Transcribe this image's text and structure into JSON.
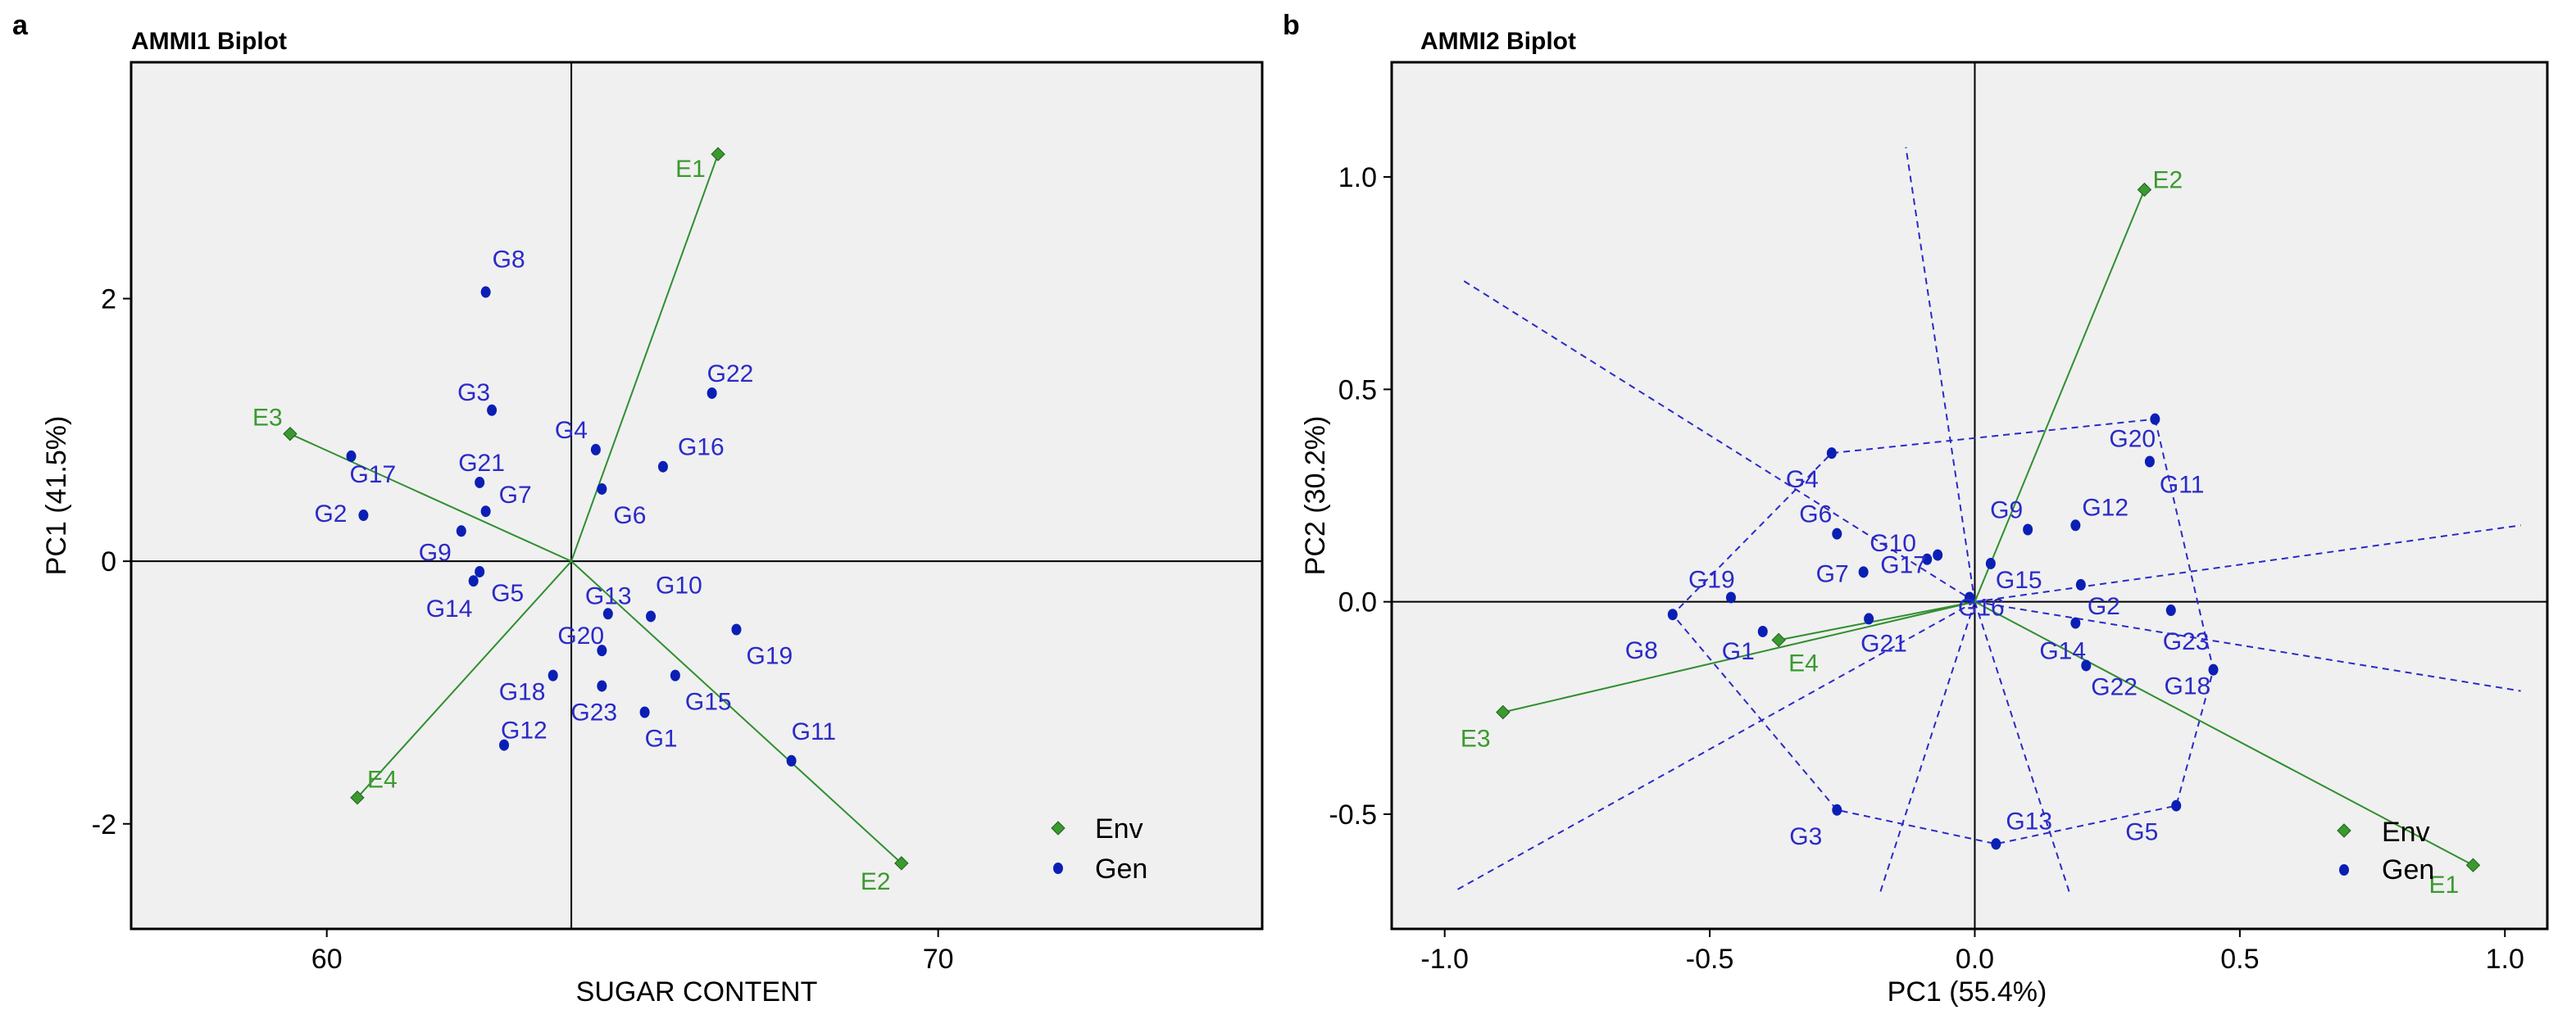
{
  "colors": {
    "env": "#3a9a2e",
    "env_line": "#2f8f2f",
    "gen": "#0b1fb5",
    "gen_label": "#2a2ac8",
    "hull": "#2a2ac8",
    "axis": "#000000",
    "background": "#f0f0f0"
  },
  "chart_data": [
    {
      "type": "scatter",
      "panel_label": "a",
      "title": "AMMI1 Biplot",
      "xlabel": "SUGAR CONTENT",
      "ylabel": "PC1 (41.5%)",
      "xlim": [
        56.8,
        75.3
      ],
      "ylim": [
        -2.8,
        3.8
      ],
      "xticks": [
        60,
        70
      ],
      "yticks": [
        -2,
        0,
        2
      ],
      "ref_x": 64.0,
      "ref_y": 0,
      "legend": {
        "position": "bottom-right",
        "entries": [
          "Env",
          "Gen"
        ]
      },
      "environments": [
        {
          "name": "E1",
          "x": 66.4,
          "y": 3.1
        },
        {
          "name": "E2",
          "x": 69.4,
          "y": -2.3
        },
        {
          "name": "E3",
          "x": 59.4,
          "y": 0.97
        },
        {
          "name": "E4",
          "x": 60.5,
          "y": -1.8
        }
      ],
      "genotypes": [
        {
          "name": "G1",
          "x": 65.2,
          "y": -1.15
        },
        {
          "name": "G2",
          "x": 60.6,
          "y": 0.35
        },
        {
          "name": "G3",
          "x": 62.7,
          "y": 1.15
        },
        {
          "name": "G4",
          "x": 64.4,
          "y": 0.85
        },
        {
          "name": "G5",
          "x": 62.5,
          "y": -0.08
        },
        {
          "name": "G6",
          "x": 64.5,
          "y": 0.55
        },
        {
          "name": "G7",
          "x": 62.6,
          "y": 0.38
        },
        {
          "name": "G8",
          "x": 62.6,
          "y": 2.05
        },
        {
          "name": "G9",
          "x": 62.2,
          "y": 0.23
        },
        {
          "name": "G10",
          "x": 65.3,
          "y": -0.42
        },
        {
          "name": "G11",
          "x": 67.6,
          "y": -1.52
        },
        {
          "name": "G12",
          "x": 62.9,
          "y": -1.4
        },
        {
          "name": "G13",
          "x": 64.6,
          "y": -0.4
        },
        {
          "name": "G14",
          "x": 62.4,
          "y": -0.15
        },
        {
          "name": "G15",
          "x": 65.7,
          "y": -0.87
        },
        {
          "name": "G16",
          "x": 65.5,
          "y": 0.72
        },
        {
          "name": "G17",
          "x": 60.4,
          "y": 0.8
        },
        {
          "name": "G18",
          "x": 63.7,
          "y": -0.87
        },
        {
          "name": "G19",
          "x": 66.7,
          "y": -0.52
        },
        {
          "name": "G20",
          "x": 64.5,
          "y": -0.68
        },
        {
          "name": "G21",
          "x": 62.5,
          "y": 0.6
        },
        {
          "name": "G22",
          "x": 66.3,
          "y": 1.28
        },
        {
          "name": "G23",
          "x": 64.5,
          "y": -0.95
        }
      ]
    },
    {
      "type": "scatter",
      "panel_label": "b",
      "title": "AMMI2 Biplot",
      "xlabel": "PC1 (55.4%)",
      "ylabel": "PC2 (30.2%)",
      "xlim": [
        -1.1,
        1.08
      ],
      "ylim": [
        -0.77,
        1.27
      ],
      "xticks": [
        -1.0,
        -0.5,
        0.0,
        0.5,
        1.0
      ],
      "ytick_labels": [
        "1.0",
        "0.5",
        "0.0",
        "-0.5"
      ],
      "yticks": [
        1.0,
        0.5,
        0.0,
        -0.5
      ],
      "xtick_labels": [
        "-1.0",
        "-0.5",
        "0.0",
        "0.5",
        "1.0"
      ],
      "ref_x": 0,
      "ref_y": 0,
      "legend": {
        "position": "bottom-right",
        "entries": [
          "Env",
          "Gen"
        ]
      },
      "environments": [
        {
          "name": "E1",
          "x": 0.94,
          "y": -0.62
        },
        {
          "name": "E2",
          "x": 0.32,
          "y": 0.97
        },
        {
          "name": "E3",
          "x": -0.89,
          "y": -0.26
        },
        {
          "name": "E4",
          "x": -0.37,
          "y": -0.09
        }
      ],
      "genotypes": [
        {
          "name": "G1",
          "x": -0.4,
          "y": -0.07
        },
        {
          "name": "G2",
          "x": 0.2,
          "y": 0.04
        },
        {
          "name": "G3",
          "x": -0.26,
          "y": -0.49
        },
        {
          "name": "G4",
          "x": -0.27,
          "y": 0.35
        },
        {
          "name": "G5",
          "x": 0.38,
          "y": -0.48
        },
        {
          "name": "G6",
          "x": -0.26,
          "y": 0.16
        },
        {
          "name": "G7",
          "x": -0.21,
          "y": 0.07
        },
        {
          "name": "G8",
          "x": -0.57,
          "y": -0.03
        },
        {
          "name": "G9",
          "x": 0.1,
          "y": 0.17
        },
        {
          "name": "G10",
          "x": -0.09,
          "y": 0.1
        },
        {
          "name": "G11",
          "x": 0.33,
          "y": 0.33
        },
        {
          "name": "G12",
          "x": 0.19,
          "y": 0.18
        },
        {
          "name": "G13",
          "x": 0.04,
          "y": -0.57
        },
        {
          "name": "G14",
          "x": 0.19,
          "y": -0.05
        },
        {
          "name": "G15",
          "x": 0.03,
          "y": 0.09
        },
        {
          "name": "G16",
          "x": -0.01,
          "y": 0.01
        },
        {
          "name": "G17",
          "x": -0.07,
          "y": 0.11
        },
        {
          "name": "G18",
          "x": 0.45,
          "y": -0.16
        },
        {
          "name": "G19",
          "x": -0.46,
          "y": 0.01
        },
        {
          "name": "G20",
          "x": 0.34,
          "y": 0.43
        },
        {
          "name": "G21",
          "x": -0.2,
          "y": -0.04
        },
        {
          "name": "G22",
          "x": 0.21,
          "y": -0.15
        },
        {
          "name": "G23",
          "x": 0.37,
          "y": -0.02
        }
      ],
      "polygon_vertices": [
        "G20",
        "G18",
        "G5",
        "G13",
        "G3",
        "G8",
        "G4"
      ],
      "sector_rays": [
        {
          "to_x": -0.97,
          "to_y": 0.76
        },
        {
          "to_x": -0.13,
          "to_y": 1.07
        },
        {
          "to_x": 1.03,
          "to_y": 0.18
        },
        {
          "to_x": 1.03,
          "to_y": -0.21
        },
        {
          "to_x": 0.18,
          "to_y": -0.69
        },
        {
          "to_x": -0.18,
          "to_y": -0.69
        },
        {
          "to_x": -0.98,
          "to_y": -0.68
        }
      ]
    }
  ]
}
